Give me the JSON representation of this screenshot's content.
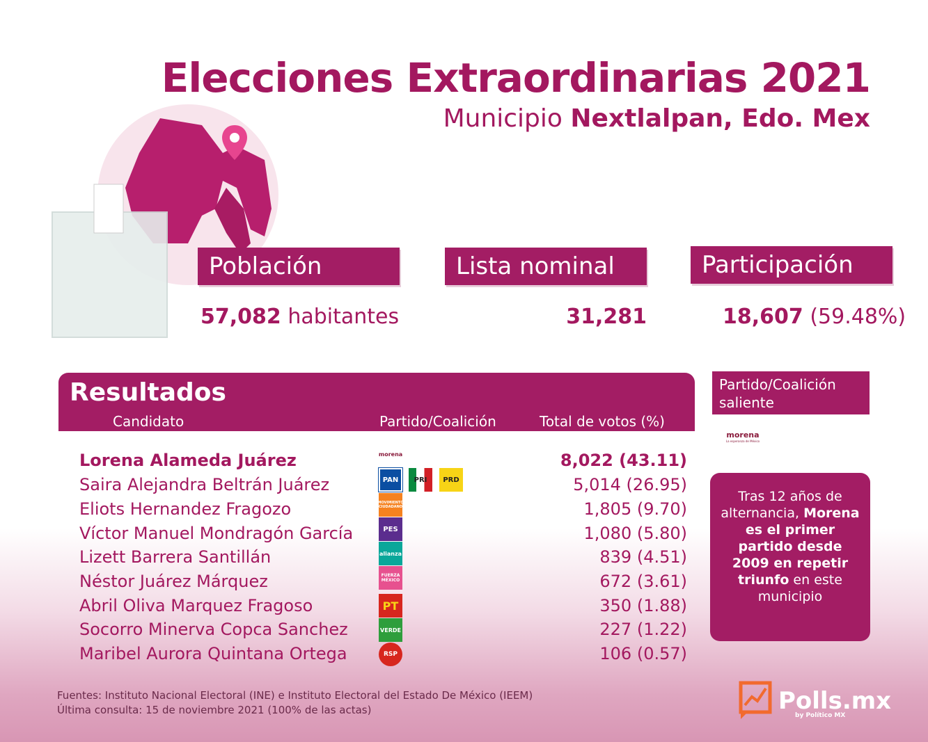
{
  "header": {
    "title": "Elecciones Extraordinarias 2021",
    "subtitle_prefix": "Municipio ",
    "subtitle_bold": "Nextlalpan, Edo. Mex"
  },
  "stats": {
    "population": {
      "label": "Población",
      "value": "57,082",
      "suffix": " habitantes"
    },
    "nominal": {
      "label": "Lista nominal",
      "value": "31,281"
    },
    "participation": {
      "label": "Participación",
      "value": "18,607",
      "suffix": " (59.48%)"
    }
  },
  "results": {
    "title": "Resultados",
    "col_candidate": "Candidato",
    "col_party": "Partido/Coalición",
    "col_votes": "Total de votos (%)",
    "rows": [
      {
        "name": "Lorena Alameda Juárez",
        "votes": "8,022 (43.11)",
        "parties": [
          "morena"
        ],
        "winner": true
      },
      {
        "name": "Saira Alejandra Beltrán Juárez",
        "votes": "5,014 (26.95)",
        "parties": [
          "PAN",
          "PRI",
          "PRD"
        ]
      },
      {
        "name": "Eliots Hernandez Fragozo",
        "votes": "1,805 (9.70)",
        "parties": [
          "MC"
        ]
      },
      {
        "name": "Víctor Manuel Mondragón García",
        "votes": "1,080 (5.80)",
        "parties": [
          "PES"
        ]
      },
      {
        "name": "Lizett Barrera Santillán",
        "votes": "839 (4.51)",
        "parties": [
          "alianza"
        ]
      },
      {
        "name": "Néstor Juárez Márquez",
        "votes": "672 (3.61)",
        "parties": [
          "FUERZA MÉXICO"
        ]
      },
      {
        "name": "Abril Oliva Marquez Fragoso",
        "votes": "350 (1.88)",
        "parties": [
          "PT"
        ]
      },
      {
        "name": "Socorro Minerva Copca Sanchez",
        "votes": "227 (1.22)",
        "parties": [
          "VERDE"
        ]
      },
      {
        "name": "Maribel Aurora Quintana Ortega",
        "votes": "106 (0.57)",
        "parties": [
          "RSP"
        ]
      }
    ]
  },
  "side": {
    "head": "Partido/Coalición saliente",
    "outgoing_logo": "morena",
    "callout_pre": "Tras 12 años de alternancia, ",
    "callout_bold1": "Morena es el primer partido desde 2009 en repetir triunfo",
    "callout_post": " en este municipio"
  },
  "footer": {
    "sources": "Fuentes: Instituto Nacional Electoral (INE) e Instituto Electoral del Estado De México (IEEM)",
    "last_check": "Última consulta: 15 de noviembre 2021 (100% de las actas)"
  },
  "brand": {
    "name": "Polls.mx",
    "sub": "by Político MX"
  },
  "colors": {
    "primary": "#a31d64",
    "text": "#a3185f"
  },
  "logo_labels": {
    "morena": "morena",
    "morena_tag": "La esperanza de México",
    "PAN": "PAN",
    "PRI": "PRI",
    "PRD": "PRD",
    "MC": "MOVIMIENTO CIUDADANO",
    "PES": "PES",
    "alianza": "alianza",
    "FM": "FUERZA MÉXICO",
    "PT": "PT",
    "VERDE": "VERDE",
    "RSP": "RSP"
  }
}
